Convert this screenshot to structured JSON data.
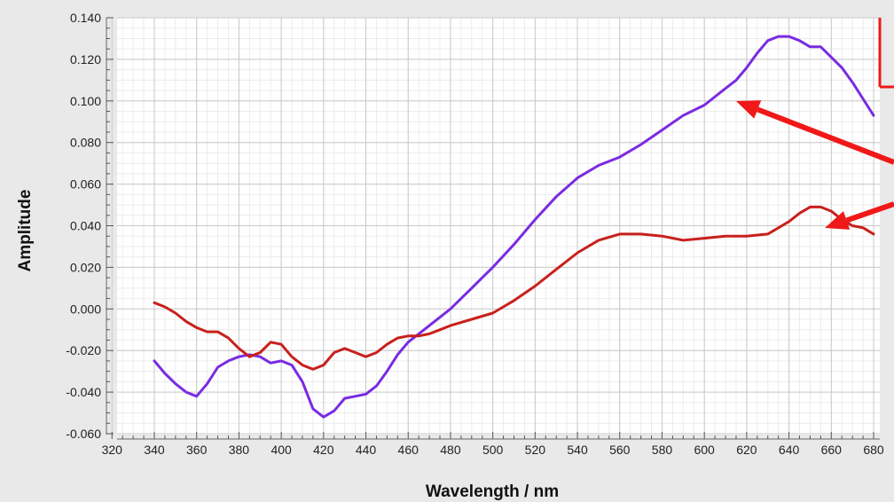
{
  "chart_data": {
    "type": "line",
    "title": "",
    "xlabel": "Wavelength / nm",
    "ylabel": "Amplitude",
    "xlim": [
      320,
      680
    ],
    "ylim": [
      -0.06,
      0.14
    ],
    "x_ticks": [
      "320",
      "340",
      "360",
      "380",
      "400",
      "420",
      "440",
      "460",
      "480",
      "500",
      "520",
      "540",
      "560",
      "580",
      "600",
      "620",
      "640",
      "660",
      "680"
    ],
    "y_ticks": [
      "0.140",
      "0.120",
      "0.100",
      "0.080",
      "0.060",
      "0.040",
      "0.020",
      "0.000",
      "-0.020",
      "-0.040",
      "-0.060"
    ],
    "grid": true,
    "series": [
      {
        "color": "#7a2be2",
        "x": [
          340,
          345,
          350,
          355,
          360,
          365,
          370,
          375,
          380,
          385,
          390,
          395,
          400,
          405,
          410,
          415,
          420,
          425,
          430,
          435,
          440,
          445,
          450,
          455,
          460,
          465,
          470,
          475,
          480,
          485,
          490,
          495,
          500,
          510,
          520,
          530,
          540,
          550,
          560,
          570,
          580,
          590,
          600,
          610,
          615,
          620,
          625,
          630,
          635,
          640,
          645,
          650,
          655,
          660,
          665,
          670,
          675,
          680
        ],
        "y": [
          -0.025,
          -0.031,
          -0.036,
          -0.04,
          -0.042,
          -0.036,
          -0.028,
          -0.025,
          -0.023,
          -0.022,
          -0.023,
          -0.026,
          -0.025,
          -0.027,
          -0.035,
          -0.048,
          -0.052,
          -0.049,
          -0.043,
          -0.042,
          -0.041,
          -0.037,
          -0.03,
          -0.022,
          -0.016,
          -0.012,
          -0.008,
          -0.004,
          0.0,
          0.005,
          0.01,
          0.015,
          0.02,
          0.031,
          0.043,
          0.054,
          0.063,
          0.069,
          0.073,
          0.079,
          0.086,
          0.093,
          0.098,
          0.106,
          0.11,
          0.116,
          0.123,
          0.129,
          0.131,
          0.131,
          0.129,
          0.126,
          0.126,
          0.121,
          0.116,
          0.109,
          0.101,
          0.093
        ]
      },
      {
        "color": "#c8201c",
        "x": [
          340,
          345,
          350,
          355,
          360,
          365,
          370,
          375,
          380,
          385,
          390,
          395,
          400,
          405,
          410,
          415,
          420,
          425,
          430,
          435,
          440,
          445,
          450,
          455,
          460,
          465,
          470,
          475,
          480,
          490,
          500,
          510,
          520,
          530,
          540,
          550,
          560,
          570,
          580,
          590,
          600,
          610,
          620,
          630,
          640,
          645,
          650,
          655,
          660,
          665,
          670,
          675,
          680
        ],
        "y": [
          0.003,
          0.001,
          -0.002,
          -0.006,
          -0.009,
          -0.011,
          -0.011,
          -0.014,
          -0.019,
          -0.023,
          -0.021,
          -0.016,
          -0.017,
          -0.023,
          -0.027,
          -0.029,
          -0.027,
          -0.021,
          -0.019,
          -0.021,
          -0.023,
          -0.021,
          -0.017,
          -0.014,
          -0.013,
          -0.013,
          -0.012,
          -0.01,
          -0.008,
          -0.005,
          -0.002,
          0.004,
          0.011,
          0.019,
          0.027,
          0.033,
          0.036,
          0.036,
          0.035,
          0.033,
          0.034,
          0.035,
          0.035,
          0.036,
          0.042,
          0.046,
          0.049,
          0.049,
          0.047,
          0.043,
          0.04,
          0.039,
          0.036
        ]
      }
    ],
    "annotation_arrows_color": "#f01818"
  }
}
